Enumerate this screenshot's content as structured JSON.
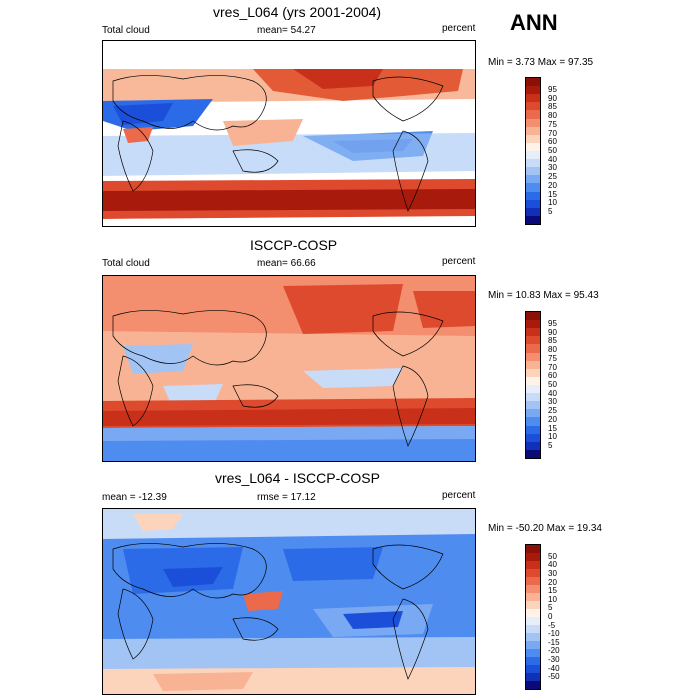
{
  "season": "ANN",
  "colors": {
    "abs_scale": [
      "#0a0a78",
      "#1030b8",
      "#1c4fd9",
      "#2b6be8",
      "#4f8cf0",
      "#79a9f2",
      "#a2c4f5",
      "#c8dcf8",
      "#e6eefb",
      "#fff2e6",
      "#fcd4bc",
      "#f8b395",
      "#f38e6e",
      "#ea6a4b",
      "#dd4a2e",
      "#c9301a",
      "#a81a0c",
      "#8c1005"
    ],
    "diff_scale": [
      "#0a0a78",
      "#1030b8",
      "#1c4fd9",
      "#2b6be8",
      "#4f8cf0",
      "#79a9f2",
      "#a2c4f5",
      "#c8dcf8",
      "#e6eefb",
      "#fff2e6",
      "#fcd4bc",
      "#f8b395",
      "#f38e6e",
      "#ea6a4b",
      "#dd4a2e",
      "#c9301a",
      "#a81a0c",
      "#8c1005"
    ]
  },
  "panels": [
    {
      "title": "vres_L064 (yrs 2001-2004)",
      "left_label": "Total cloud",
      "center_label": "mean=  54.27",
      "right_label": "percent",
      "minmax": "Min =   3.73 Max =  97.35",
      "scale_type": "abs",
      "levels": [
        "95",
        "90",
        "85",
        "80",
        "75",
        "70",
        "60",
        "50",
        "40",
        "30",
        "25",
        "20",
        "15",
        "10",
        "5"
      ]
    },
    {
      "title": "ISCCP-COSP",
      "left_label": "Total cloud",
      "center_label": "mean=  66.66",
      "right_label": "percent",
      "minmax": "Min =  10.83 Max =  95.43",
      "scale_type": "abs",
      "levels": [
        "95",
        "90",
        "85",
        "80",
        "75",
        "70",
        "60",
        "50",
        "40",
        "30",
        "25",
        "20",
        "15",
        "10",
        "5"
      ]
    },
    {
      "title": "vres_L064 - ISCCP-COSP",
      "left_label": "mean = -12.39",
      "center_label": "rmse =  17.12",
      "right_label": "percent",
      "minmax": "Min = -50.20 Max =  19.34",
      "scale_type": "diff",
      "levels": [
        "50",
        "40",
        "30",
        "20",
        "15",
        "10",
        "5",
        "0",
        "-5",
        "-10",
        "-15",
        "-20",
        "-30",
        "-40",
        "-50"
      ]
    }
  ]
}
